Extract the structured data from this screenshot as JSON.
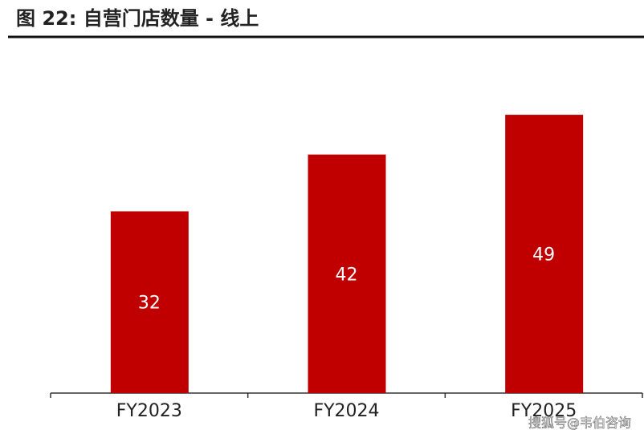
{
  "chart_data": {
    "type": "bar",
    "title": "图 22: 自营门店数量 - 线上",
    "categories": [
      "FY2023",
      "FY2024",
      "FY2025"
    ],
    "values": [
      32,
      42,
      49
    ],
    "color": "#c00000",
    "watermark": "搜狐号@韦伯咨询"
  }
}
